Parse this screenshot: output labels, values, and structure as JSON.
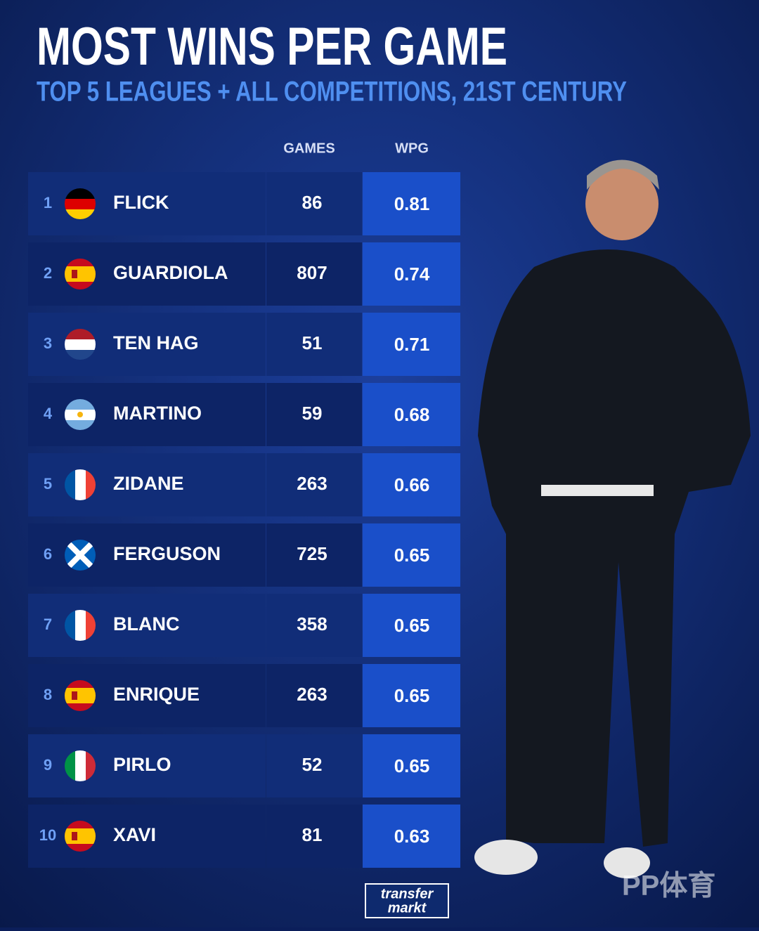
{
  "header": {
    "title": "MOST WINS PER GAME",
    "subtitle": "TOP 5 LEAGUES + ALL COMPETITIONS, 21ST CENTURY"
  },
  "table": {
    "columns": [
      "GAMES",
      "WPG"
    ],
    "rows": [
      [
        1,
        "FLICK",
        86,
        0.81
      ],
      [
        2,
        "GUARDIOLA",
        807,
        0.74
      ],
      [
        3,
        "TEN HAG",
        51,
        0.71
      ],
      [
        4,
        "MARTINO",
        59,
        0.68
      ],
      [
        5,
        "ZIDANE",
        263,
        0.66
      ],
      [
        6,
        "FERGUSON",
        725,
        0.65
      ],
      [
        7,
        "BLANC",
        358,
        0.65
      ],
      [
        8,
        "ENRIQUE",
        263,
        0.65
      ],
      [
        9,
        "PIRLO",
        52,
        0.65
      ],
      [
        10,
        "XAVI",
        81,
        0.63
      ]
    ]
  },
  "footer": {
    "logo": [
      "transfer",
      "markt"
    ],
    "watermark": "PP体育"
  }
}
